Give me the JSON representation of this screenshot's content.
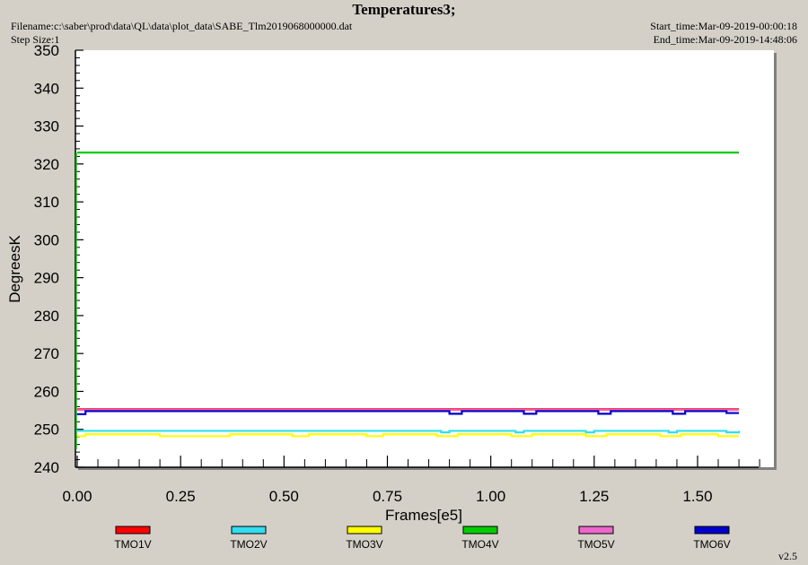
{
  "header": {
    "title": "Temperatures3;",
    "filename": "Filename:c:\\saber\\prod\\data\\QL\\data\\plot_data\\SABE_Tlm2019068000000.dat",
    "step_size": "Step Size:1",
    "start_time": "Start_time:Mar-09-2019-00:00:18",
    "end_time": "End_time:Mar-09-2019-14:48:06"
  },
  "footer": {
    "version": "v2.5"
  },
  "colors": {
    "plot_background": "#ffffff",
    "window_background": "#d4d0c8"
  },
  "chart_data": {
    "type": "line",
    "title": "Temperatures3;",
    "xlabel": "Frames[e5]",
    "ylabel": "DegreesK",
    "xlim": [
      0.0,
      1.7
    ],
    "ylim": [
      240,
      350
    ],
    "x_ticks": [
      0.0,
      0.25,
      0.5,
      0.75,
      1.0,
      1.25,
      1.5
    ],
    "x_tick_labels": [
      "0.00",
      "0.25",
      "0.50",
      "0.75",
      "1.00",
      "1.25",
      "1.50"
    ],
    "y_ticks": [
      240,
      250,
      260,
      270,
      280,
      290,
      300,
      310,
      320,
      330,
      340,
      350
    ],
    "y_tick_labels": [
      "240",
      "250",
      "260",
      "270",
      "280",
      "290",
      "300",
      "310",
      "320",
      "330",
      "340",
      "350"
    ],
    "legend_position": "bottom",
    "grid": false,
    "series": [
      {
        "name": "TMO1V",
        "color": "#ff0000",
        "x": [
          0.0,
          0.2,
          0.4,
          0.6,
          0.8,
          1.0,
          1.2,
          1.4,
          1.6
        ],
        "y": [
          255.3,
          255.3,
          255.3,
          255.3,
          255.3,
          255.3,
          255.3,
          255.3,
          255.3
        ]
      },
      {
        "name": "TMO2V",
        "color": "#33ddee",
        "x": [
          0.0,
          0.2,
          0.4,
          0.6,
          0.8,
          0.88,
          0.9,
          1.0,
          1.06,
          1.08,
          1.2,
          1.23,
          1.25,
          1.4,
          1.43,
          1.45,
          1.57,
          1.6
        ],
        "y": [
          249.6,
          249.6,
          249.6,
          249.6,
          249.6,
          249.2,
          249.6,
          249.6,
          249.2,
          249.6,
          249.6,
          249.2,
          249.6,
          249.6,
          249.2,
          249.6,
          249.2,
          249.6
        ]
      },
      {
        "name": "TMO3V",
        "color": "#ffff00",
        "x": [
          0.0,
          0.02,
          0.15,
          0.2,
          0.33,
          0.37,
          0.52,
          0.56,
          0.7,
          0.74,
          0.87,
          0.92,
          1.05,
          1.1,
          1.23,
          1.28,
          1.41,
          1.46,
          1.55,
          1.6
        ],
        "y": [
          248.2,
          248.7,
          248.7,
          248.2,
          248.2,
          248.7,
          248.2,
          248.7,
          248.2,
          248.7,
          248.2,
          248.7,
          248.2,
          248.7,
          248.2,
          248.7,
          248.2,
          248.7,
          248.2,
          248.2
        ]
      },
      {
        "name": "TMO4V",
        "color": "#00cc00",
        "x": [
          0.0,
          0.2,
          0.4,
          0.6,
          0.8,
          1.0,
          1.2,
          1.4,
          1.6
        ],
        "y": [
          323.0,
          323.0,
          323.0,
          323.0,
          323.0,
          323.0,
          323.0,
          323.0,
          323.0
        ]
      },
      {
        "name": "TMO5V",
        "color": "#ee66cc",
        "x": [
          0.0,
          0.2,
          0.4,
          0.6,
          0.8,
          1.0,
          1.2,
          1.4,
          1.6
        ],
        "y": [
          255.1,
          255.1,
          255.1,
          255.1,
          255.1,
          255.1,
          255.1,
          255.1,
          255.1
        ]
      },
      {
        "name": "TMO6V",
        "color": "#0000cc",
        "x": [
          0.0,
          0.02,
          0.05,
          0.88,
          0.9,
          0.93,
          1.06,
          1.08,
          1.11,
          1.24,
          1.26,
          1.29,
          1.42,
          1.44,
          1.47,
          1.57,
          1.6
        ],
        "y": [
          254.0,
          254.8,
          254.8,
          254.8,
          254.1,
          254.8,
          254.8,
          254.1,
          254.8,
          254.8,
          254.1,
          254.8,
          254.8,
          254.1,
          254.8,
          254.3,
          254.3
        ]
      }
    ]
  }
}
